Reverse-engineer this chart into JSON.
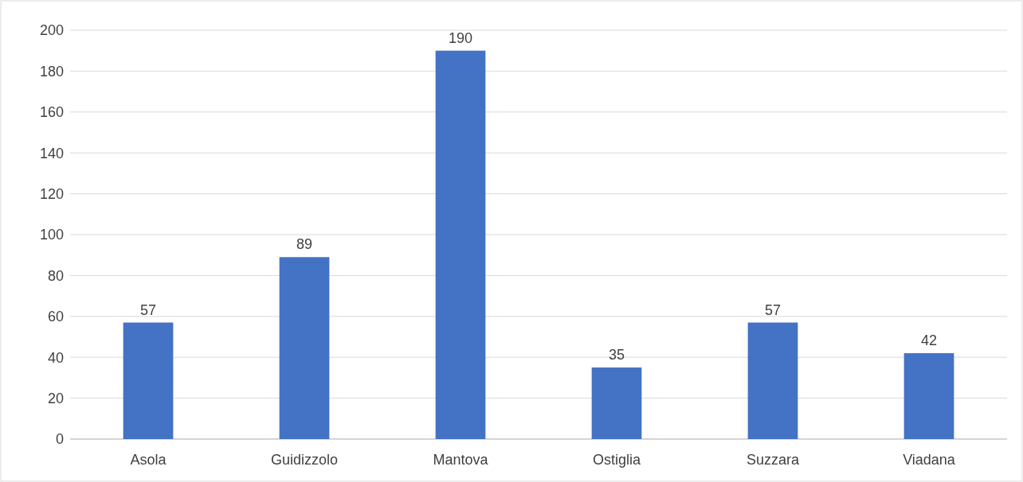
{
  "chart_data": {
    "type": "bar",
    "categories": [
      "Asola",
      "Guidizzolo",
      "Mantova",
      "Ostiglia",
      "Suzzara",
      "Viadana"
    ],
    "values": [
      57,
      89,
      190,
      35,
      57,
      42
    ],
    "color": "#4472c4",
    "ylim": [
      0,
      200
    ],
    "yticks": [
      0,
      20,
      40,
      60,
      80,
      100,
      120,
      140,
      160,
      180,
      200
    ],
    "grid": "y",
    "data_labels": true
  }
}
